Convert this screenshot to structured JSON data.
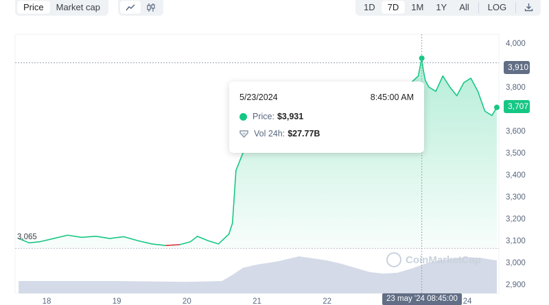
{
  "toolbar": {
    "view_tabs": [
      "Price",
      "Market cap"
    ],
    "active_view": "Price",
    "chart_types": [
      "line-chart-icon",
      "candlestick-icon"
    ],
    "ranges": [
      "1D",
      "7D",
      "1M",
      "1Y",
      "All"
    ],
    "active_range": "7D",
    "log_label": "LOG",
    "download_icon": "download-icon"
  },
  "tooltip": {
    "date": "5/23/2024",
    "time": "8:45:00 AM",
    "price_label": "Price:",
    "price_value": "$3,931",
    "vol_label": "Vol 24h:",
    "vol_value": "$27.77B"
  },
  "badges": {
    "hover_price": "3,910",
    "current_price": "3,707"
  },
  "low_label": "3,065",
  "crosshair_x_label": "23 may '24  08:45:00",
  "watermark_text": "CoinMarketCap",
  "colors": {
    "up": "#16c784",
    "down": "#ea3943",
    "volume": "#cfd6e4"
  },
  "chart_data": {
    "type": "area",
    "title": "",
    "xlabel": "",
    "ylabel": "",
    "x_ticks": [
      "18",
      "19",
      "20",
      "21",
      "22",
      "23",
      "24"
    ],
    "y_ticks": [
      "4,000",
      "3,900",
      "3,800",
      "3,700",
      "3,600",
      "3,500",
      "3,400",
      "3,300",
      "3,200",
      "3,100",
      "3,000",
      "2,900"
    ],
    "ylim": [
      2860,
      4040
    ],
    "xlim": [
      17.55,
      24.45
    ],
    "grid": false,
    "series": [
      {
        "x": [
          17.6,
          17.75,
          17.9,
          18.1,
          18.3,
          18.5,
          18.7,
          18.9,
          19.1,
          19.3,
          19.5,
          19.7,
          19.9,
          20.05,
          20.15,
          20.3,
          20.45,
          20.6,
          20.65,
          20.7,
          20.8,
          21.0,
          21.5,
          22.0,
          22.5,
          23.0,
          23.3,
          23.35,
          23.37,
          23.4,
          23.45,
          23.55,
          23.65,
          23.75,
          23.85,
          23.95,
          24.05,
          24.15,
          24.25,
          24.35,
          24.42
        ],
        "values": [
          3110,
          3090,
          3095,
          3110,
          3125,
          3115,
          3120,
          3110,
          3118,
          3100,
          3085,
          3078,
          3082,
          3095,
          3120,
          3100,
          3085,
          3130,
          3180,
          3420,
          3500,
          3540,
          3560,
          3600,
          3640,
          3760,
          3850,
          3931,
          3880,
          3830,
          3800,
          3780,
          3850,
          3800,
          3760,
          3820,
          3840,
          3780,
          3690,
          3670,
          3707
        ]
      }
    ],
    "volume": {
      "x": [
        17.6,
        18.0,
        18.5,
        19.0,
        19.5,
        20.0,
        20.5,
        20.65,
        20.8,
        21.0,
        21.3,
        21.6,
        21.8,
        22.0,
        22.2,
        22.4,
        22.6,
        22.8,
        23.0,
        23.2,
        23.4,
        23.6,
        23.8,
        24.0,
        24.2,
        24.42
      ],
      "values": [
        0.3,
        0.3,
        0.3,
        0.3,
        0.29,
        0.28,
        0.3,
        0.45,
        0.62,
        0.7,
        0.78,
        0.9,
        0.85,
        0.8,
        0.72,
        0.62,
        0.52,
        0.48,
        0.5,
        0.6,
        0.72,
        0.8,
        0.85,
        0.88,
        0.86,
        0.8
      ]
    }
  }
}
